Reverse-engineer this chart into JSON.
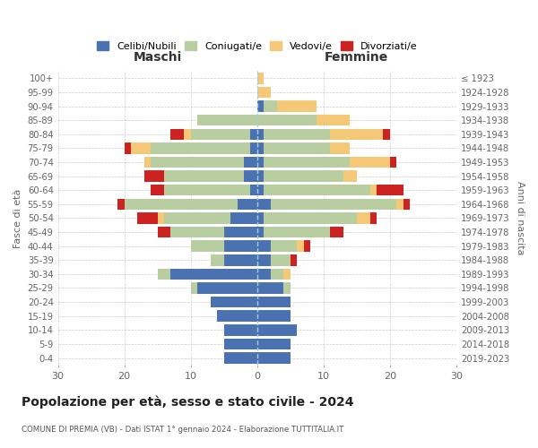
{
  "age_groups": [
    "0-4",
    "5-9",
    "10-14",
    "15-19",
    "20-24",
    "25-29",
    "30-34",
    "35-39",
    "40-44",
    "45-49",
    "50-54",
    "55-59",
    "60-64",
    "65-69",
    "70-74",
    "75-79",
    "80-84",
    "85-89",
    "90-94",
    "95-99",
    "100+"
  ],
  "birth_years": [
    "2019-2023",
    "2014-2018",
    "2009-2013",
    "2004-2008",
    "1999-2003",
    "1994-1998",
    "1989-1993",
    "1984-1988",
    "1979-1983",
    "1974-1978",
    "1969-1973",
    "1964-1968",
    "1959-1963",
    "1954-1958",
    "1949-1953",
    "1944-1948",
    "1939-1943",
    "1934-1938",
    "1929-1933",
    "1924-1928",
    "≤ 1923"
  ],
  "colors": {
    "celibi": "#4a72b0",
    "coniugati": "#b8cda0",
    "vedovi": "#f5c878",
    "divorziati": "#cc2222"
  },
  "males": {
    "celibi": [
      5,
      5,
      5,
      6,
      7,
      9,
      13,
      5,
      5,
      5,
      4,
      3,
      1,
      2,
      2,
      1,
      1,
      0,
      0,
      0,
      0
    ],
    "coniugati": [
      0,
      0,
      0,
      0,
      0,
      1,
      2,
      2,
      5,
      8,
      10,
      17,
      13,
      12,
      14,
      15,
      9,
      9,
      0,
      0,
      0
    ],
    "vedovi": [
      0,
      0,
      0,
      0,
      0,
      0,
      0,
      0,
      0,
      0,
      1,
      0,
      0,
      0,
      1,
      3,
      1,
      0,
      0,
      0,
      0
    ],
    "divorziati": [
      0,
      0,
      0,
      0,
      0,
      0,
      0,
      0,
      0,
      2,
      3,
      1,
      2,
      3,
      0,
      1,
      2,
      0,
      0,
      0,
      0
    ]
  },
  "females": {
    "celibi": [
      5,
      5,
      6,
      5,
      5,
      4,
      2,
      2,
      2,
      1,
      1,
      2,
      1,
      1,
      1,
      1,
      1,
      0,
      1,
      0,
      0
    ],
    "coniugati": [
      0,
      0,
      0,
      0,
      0,
      1,
      2,
      3,
      4,
      10,
      14,
      19,
      16,
      12,
      13,
      10,
      10,
      9,
      2,
      0,
      0
    ],
    "vedovi": [
      0,
      0,
      0,
      0,
      0,
      0,
      1,
      0,
      1,
      0,
      2,
      1,
      1,
      2,
      6,
      3,
      8,
      5,
      6,
      2,
      1
    ],
    "divorziati": [
      0,
      0,
      0,
      0,
      0,
      0,
      0,
      1,
      1,
      2,
      1,
      1,
      4,
      0,
      1,
      0,
      1,
      0,
      0,
      0,
      0
    ]
  },
  "title": "Popolazione per età, sesso e stato civile - 2024",
  "subtitle": "COMUNE DI PREMIA (VB) - Dati ISTAT 1° gennaio 2024 - Elaborazione TUTTITALIA.IT",
  "xlabel_left": "Maschi",
  "xlabel_right": "Femmine",
  "ylabel_left": "Fasce di età",
  "ylabel_right": "Anni di nascita",
  "xlim": 30,
  "legend_labels": [
    "Celibi/Nubili",
    "Coniugati/e",
    "Vedovi/e",
    "Divorziati/e"
  ]
}
